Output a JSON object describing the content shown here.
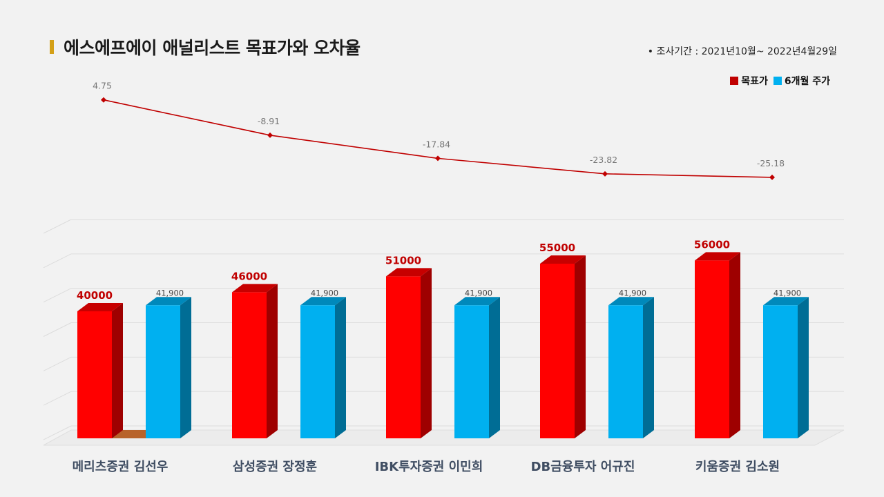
{
  "page": {
    "title": "에스에프에이 애널리스트 목표가와 오차율",
    "period": "•  조사기간 : 2021년10월~ 2022년4월29일"
  },
  "colors": {
    "title_accent": "#d4a017",
    "target_price": "#ff0000",
    "stock_price": "#00b0f0",
    "error_line": "#c00000",
    "value_label_red": "#c00000",
    "connector": "#b8632a"
  },
  "legend": {
    "items": [
      {
        "label": "목표가",
        "color": "#c00000"
      },
      {
        "label": "6개월 주가",
        "color": "#00b0f0"
      }
    ]
  },
  "chart_data": {
    "type": "bar",
    "categories": [
      "메리츠증권 김선우",
      "삼성증권 장정훈",
      "IBK투자증권 이민희",
      "DB금융투자 어규진",
      "키움증권 김소원"
    ],
    "series": [
      {
        "name": "목표가",
        "values": [
          40000,
          46000,
          51000,
          55000,
          56000
        ],
        "labels": [
          "40000",
          "46000",
          "51000",
          "55000",
          "56000"
        ]
      },
      {
        "name": "6개월 주가",
        "values": [
          41900,
          41900,
          41900,
          41900,
          41900
        ],
        "labels": [
          "41,900",
          "41,900",
          "41,900",
          "41,900",
          "41,900"
        ]
      }
    ],
    "error_rate": {
      "type": "line",
      "values": [
        4.75,
        -8.91,
        -17.84,
        -23.82,
        -25.18
      ],
      "labels": [
        "4.75",
        "-8.91",
        "-17.84",
        "-23.82",
        "-25.18"
      ]
    },
    "ylim": [
      0,
      65000
    ],
    "grid": true,
    "legend_position": "top-right",
    "style": "3d"
  }
}
